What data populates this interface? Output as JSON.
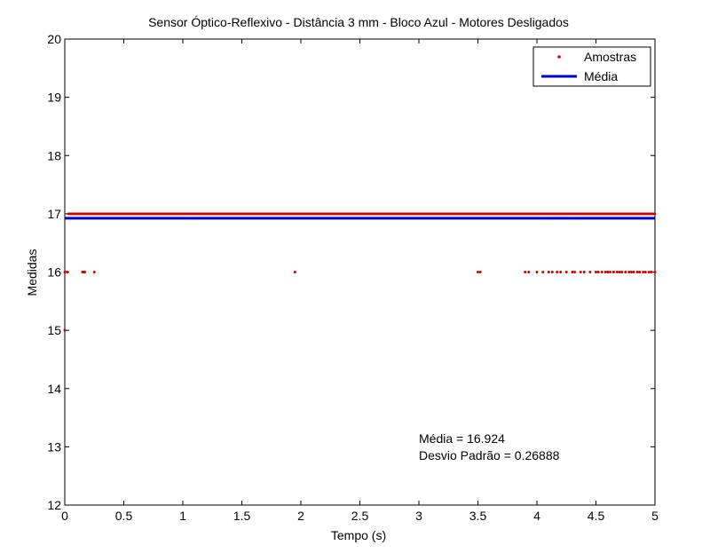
{
  "chart_data": {
    "type": "scatter",
    "title": "Sensor Óptico-Reflexivo - Distância 3 mm - Bloco Azul - Motores Desligados",
    "xlabel": "Tempo (s)",
    "ylabel": "Medidas",
    "xlim": [
      0,
      5
    ],
    "ylim": [
      12,
      20
    ],
    "xticks": [
      "0",
      "0.5",
      "1",
      "1.5",
      "2",
      "2.5",
      "3",
      "3.5",
      "4",
      "4.5",
      "5"
    ],
    "yticks": [
      "12",
      "13",
      "14",
      "15",
      "16",
      "17",
      "18",
      "19",
      "20"
    ],
    "grid": false,
    "legend_position": "top-right",
    "legend": [
      "Amostras",
      "Média"
    ],
    "series": [
      {
        "name": "Amostras",
        "color": "#cc0000",
        "marker": "dot",
        "points_at_17": {
          "x_start": 0.03,
          "x_end": 5.0,
          "density": "dense"
        },
        "points_at_15": [
          0.0
        ],
        "points_at_16": [
          0.0,
          0.02,
          0.15,
          0.16,
          0.17,
          0.25,
          1.95,
          3.5,
          3.52,
          3.9,
          3.93,
          4.0,
          4.05,
          4.1,
          4.13,
          4.17,
          4.2,
          4.25,
          4.3,
          4.32,
          4.37,
          4.4,
          4.45,
          4.5,
          4.52,
          4.55,
          4.58,
          4.6,
          4.62,
          4.65,
          4.68,
          4.7,
          4.72,
          4.75,
          4.78,
          4.8,
          4.82,
          4.85,
          4.87,
          4.9,
          4.92,
          4.95,
          4.97,
          5.0
        ]
      },
      {
        "name": "Média",
        "color": "#0000cc",
        "type": "line",
        "y": 16.924
      }
    ],
    "annotations": [
      "Média = 16.924",
      "Desvio Padrão = 0.26888"
    ]
  }
}
